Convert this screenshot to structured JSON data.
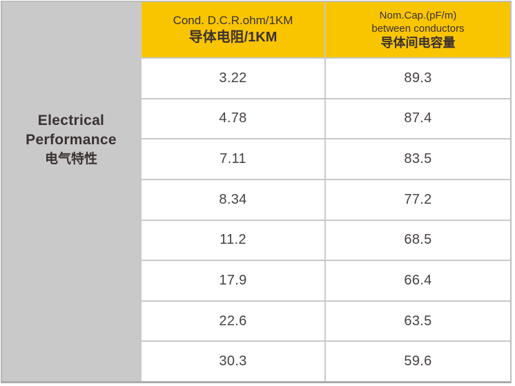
{
  "colors": {
    "header_bg": "#F9C501",
    "sidebar_bg": "#C9C9C9",
    "header_text": "#3A3132",
    "cell_text": "#474041",
    "grid_line": "#C9C9C9",
    "outer_border": "#BDBDBD",
    "outer_border_bottom": "#ABABAB"
  },
  "sidebar": {
    "title_en_line1": "Electrical",
    "title_en_line2": "Performance",
    "title_zh": "电气特性"
  },
  "header": {
    "col1": {
      "line1": "Cond. D.C.R.ohm/1KM",
      "line2": "导体电阻/1KM"
    },
    "col2": {
      "line1": "Nom.Cap.(pF/m)",
      "line2": "between conductors",
      "line3": "导体间电容量"
    }
  },
  "rows": [
    {
      "dcr": "3.22",
      "cap": "89.3"
    },
    {
      "dcr": "4.78",
      "cap": "87.4"
    },
    {
      "dcr": "7.11",
      "cap": "83.5"
    },
    {
      "dcr": "8.34",
      "cap": "77.2"
    },
    {
      "dcr": "11.2",
      "cap": "68.5"
    },
    {
      "dcr": "17.9",
      "cap": "66.4"
    },
    {
      "dcr": "22.6",
      "cap": "63.5"
    },
    {
      "dcr": "30.3",
      "cap": "59.6"
    }
  ],
  "chart_data": {
    "type": "table",
    "row_group_header": "Electrical Performance 电气特性",
    "columns": [
      "Cond. D.C.R.ohm/1KM 导体电阻/1KM",
      "Nom.Cap.(pF/m) between conductors 导体间电容量"
    ],
    "values": [
      [
        3.22,
        89.3
      ],
      [
        4.78,
        87.4
      ],
      [
        7.11,
        83.5
      ],
      [
        8.34,
        77.2
      ],
      [
        11.2,
        68.5
      ],
      [
        17.9,
        66.4
      ],
      [
        22.6,
        63.5
      ],
      [
        30.3,
        59.6
      ]
    ]
  }
}
